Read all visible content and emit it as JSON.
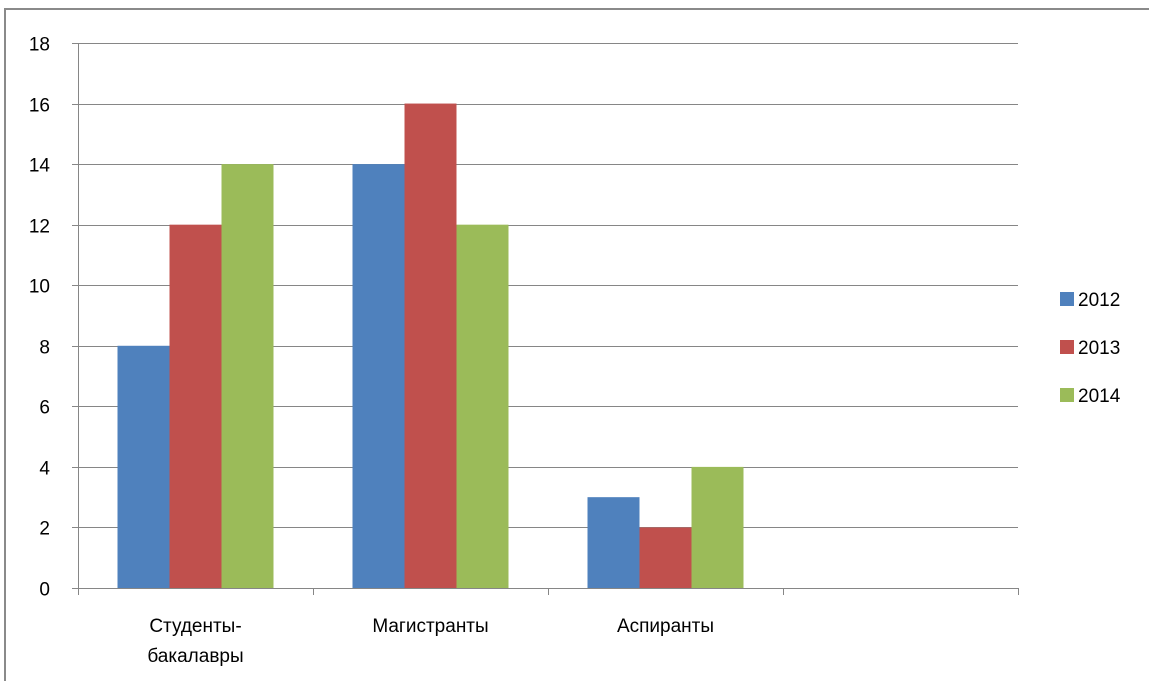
{
  "chart_data": {
    "type": "bar",
    "title": "",
    "xlabel": "",
    "ylabel": "",
    "categories": [
      [
        "Студенты-",
        "бакалавры"
      ],
      [
        "Магистранты"
      ],
      [
        "Аспиранты"
      ],
      [
        ""
      ]
    ],
    "series": [
      {
        "name": "2012",
        "color": "#4F81BD",
        "values": [
          8,
          14,
          3,
          null
        ]
      },
      {
        "name": "2013",
        "color": "#C0504D",
        "values": [
          12,
          16,
          2,
          null
        ]
      },
      {
        "name": "2014",
        "color": "#9BBB59",
        "values": [
          14,
          12,
          4,
          null
        ]
      }
    ],
    "ylim": [
      0,
      18
    ],
    "yticks": [
      "0",
      "2",
      "4",
      "6",
      "8",
      "10",
      "12",
      "14",
      "16",
      "18"
    ],
    "grid": true,
    "legend_position": "right"
  }
}
